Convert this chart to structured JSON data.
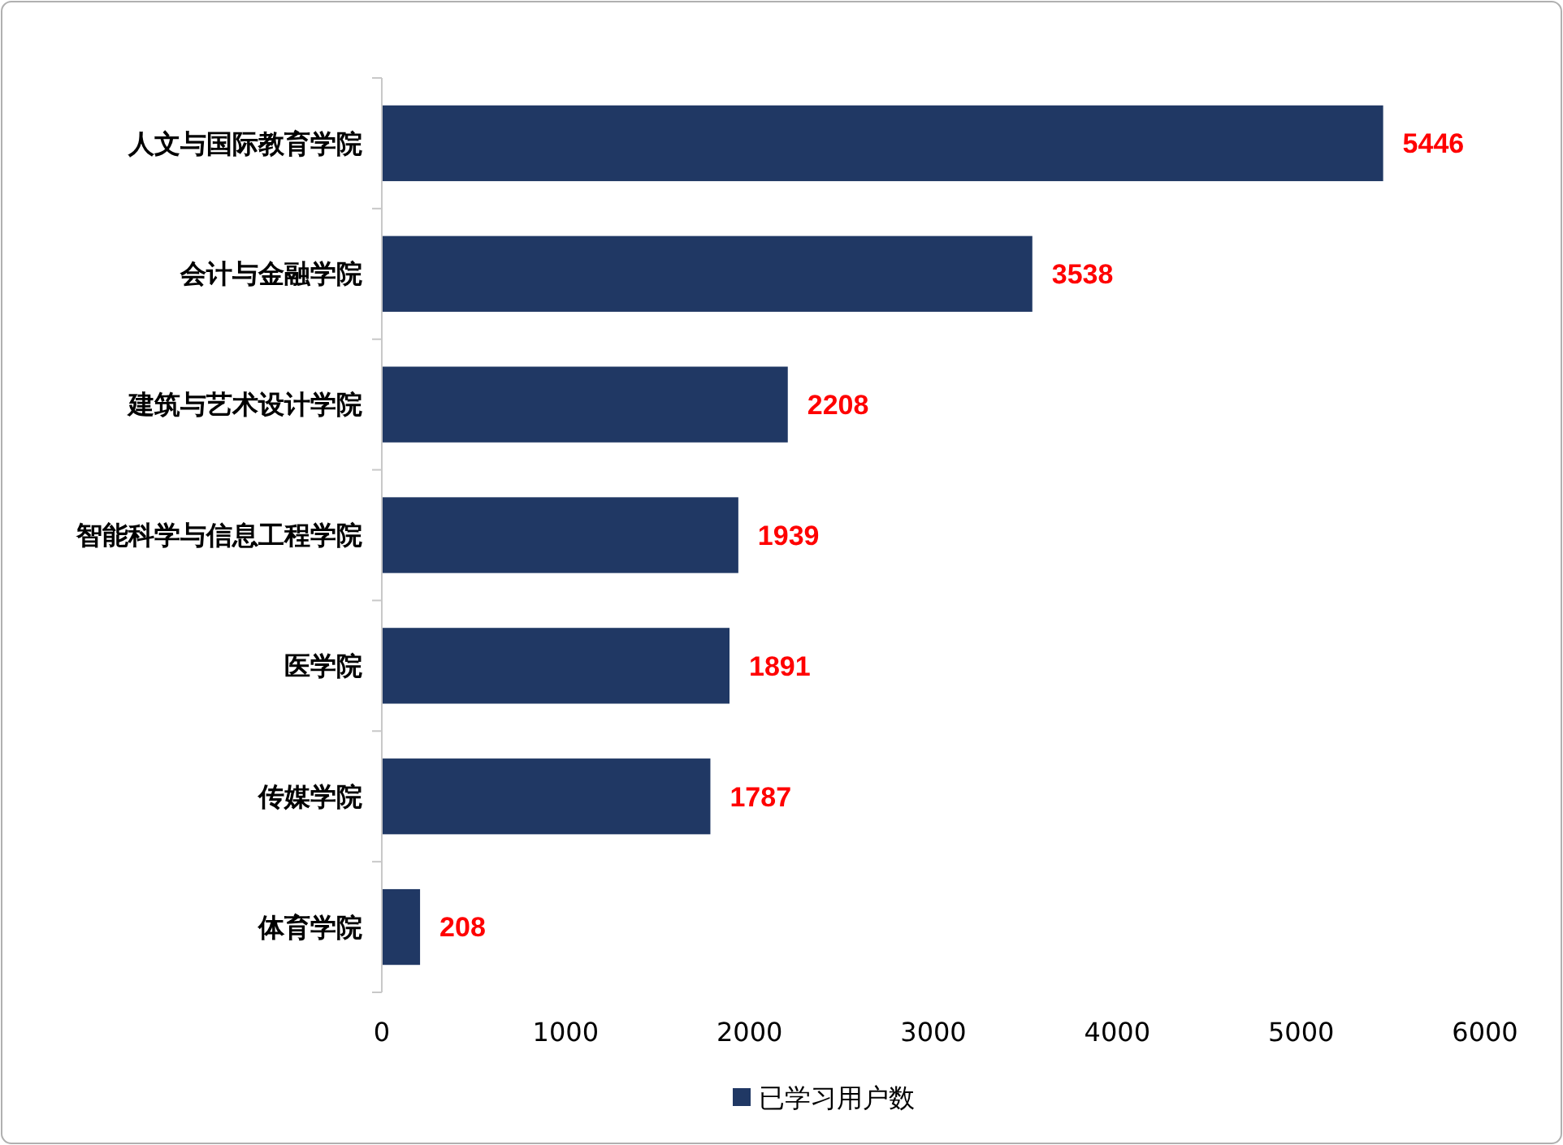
{
  "chart_data": {
    "type": "bar",
    "orientation": "horizontal",
    "categories": [
      "人文与国际教育学院",
      "会计与金融学院",
      "建筑与艺术设计学院",
      "智能科学与信息工程学院",
      "医学院",
      "传媒学院",
      "体育学院"
    ],
    "series": [
      {
        "name": "已学习用户数",
        "color": "#203864",
        "values": [
          5446,
          3538,
          2208,
          1939,
          1891,
          1787,
          208
        ]
      }
    ],
    "xlim": [
      0,
      6000
    ],
    "xticks": [
      0,
      1000,
      2000,
      3000,
      4000,
      5000,
      6000
    ],
    "data_labels": true,
    "grid": false,
    "legend": "bottom"
  }
}
